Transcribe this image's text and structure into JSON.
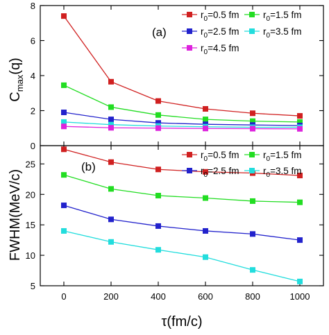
{
  "chart_data": [
    {
      "type": "line",
      "panel_label": "(a)",
      "ylabel_main": "C",
      "ylabel_sub": "max",
      "ylabel_tail": "(q)",
      "ylim": [
        0,
        8
      ],
      "yticks": [
        0,
        2,
        4,
        6,
        8
      ],
      "x": [
        0,
        200,
        400,
        600,
        800,
        1000
      ],
      "series": [
        {
          "legend_main": "r",
          "legend_sub": "0",
          "legend_tail": "=0.5 fm",
          "color": "#d02020",
          "values": [
            7.4,
            3.65,
            2.55,
            2.1,
            1.85,
            1.7
          ]
        },
        {
          "legend_main": "r",
          "legend_sub": "0",
          "legend_tail": "=1.5 fm",
          "color": "#22dd22",
          "values": [
            3.45,
            2.2,
            1.75,
            1.5,
            1.4,
            1.35
          ]
        },
        {
          "legend_main": "r",
          "legend_sub": "0",
          "legend_tail": "=2.5 fm",
          "color": "#2222cc",
          "values": [
            1.9,
            1.5,
            1.3,
            1.22,
            1.18,
            1.15
          ]
        },
        {
          "legend_main": "r",
          "legend_sub": "0",
          "legend_tail": "=3.5 fm",
          "color": "#22dddd",
          "values": [
            1.35,
            1.2,
            1.12,
            1.08,
            1.05,
            1.05
          ]
        },
        {
          "legend_main": "r",
          "legend_sub": "0",
          "legend_tail": "=4.5 fm",
          "color": "#dd22dd",
          "values": [
            1.1,
            1.02,
            1.0,
            0.98,
            0.97,
            0.96
          ]
        }
      ]
    },
    {
      "type": "line",
      "panel_label": "(b)",
      "ylabel": "FWHM(MeV/c)",
      "ylim": [
        5,
        28
      ],
      "yticks": [
        5,
        10,
        15,
        20,
        25
      ],
      "x": [
        0,
        200,
        400,
        600,
        800,
        1000
      ],
      "series": [
        {
          "legend_main": "r",
          "legend_sub": "0",
          "legend_tail": "=0.5 fm",
          "color": "#d02020",
          "values": [
            27.4,
            25.3,
            24.1,
            23.7,
            23.5,
            23.1
          ]
        },
        {
          "legend_main": "r",
          "legend_sub": "0",
          "legend_tail": "=1.5 fm",
          "color": "#22dd22",
          "values": [
            23.2,
            20.9,
            19.8,
            19.4,
            18.9,
            18.7
          ]
        },
        {
          "legend_main": "r",
          "legend_sub": "0",
          "legend_tail": "=2.5 fm",
          "color": "#2222cc",
          "values": [
            18.2,
            15.9,
            14.8,
            14.0,
            13.5,
            12.5
          ]
        },
        {
          "legend_main": "r",
          "legend_sub": "0",
          "legend_tail": "=3.5 fm",
          "color": "#22dddd",
          "values": [
            14.0,
            12.2,
            10.9,
            9.7,
            7.6,
            5.7
          ]
        }
      ]
    }
  ],
  "x_axis": {
    "label": "τ(fm/c)",
    "xlim": [
      -100,
      1100
    ],
    "ticks": [
      0,
      200,
      400,
      600,
      800,
      1000
    ]
  }
}
